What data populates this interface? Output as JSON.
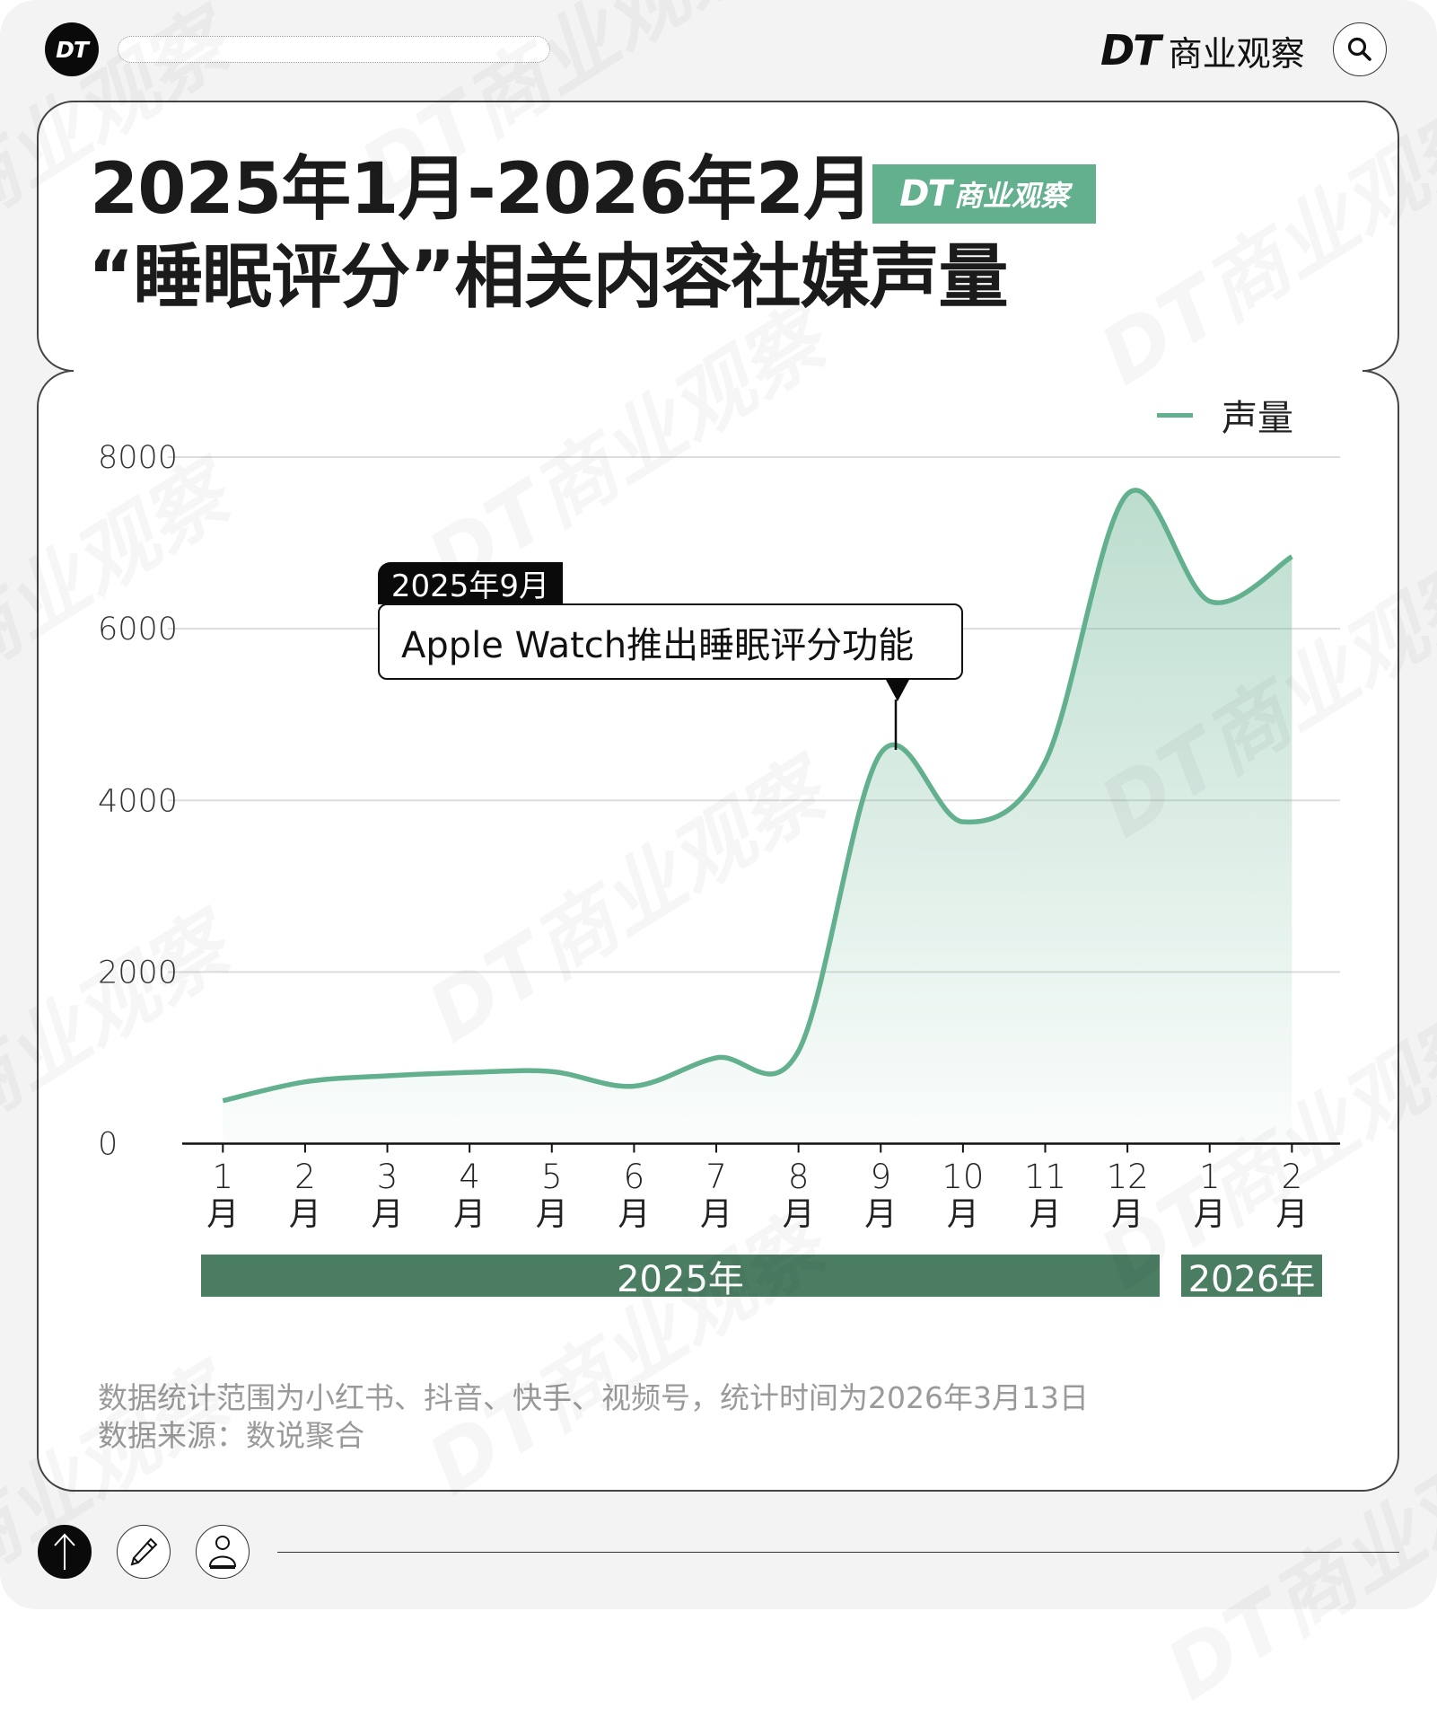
{
  "header": {
    "logo_text": "DT",
    "brand_dt": "DT",
    "brand_name": "商业观察",
    "search_icon": "search-icon"
  },
  "title": {
    "line1": "2025年1月-2026年2月",
    "line2": "“睡眠评分”相关内容社媒声量",
    "badge_dt": "DT",
    "badge_name": "商业观察"
  },
  "legend": {
    "label": "声量",
    "color": "#63b08e"
  },
  "annotation": {
    "tag": "2025年9月",
    "text": "Apple Watch推出睡眠评分功能"
  },
  "year_bars": [
    {
      "label": "2025年"
    },
    {
      "label": "2026年"
    }
  ],
  "footnote": {
    "line1": "数据统计范围为小红书、抖音、快手、视频号，统计时间为2026年3月13日",
    "line2": "数据来源：数说聚合"
  },
  "bottom_bar": {
    "buttons": [
      "arrow-up-icon",
      "pencil-icon",
      "person-icon"
    ]
  },
  "watermark": "DT商业观察",
  "colors": {
    "background": "#f3f3f3",
    "card": "#ffffff",
    "accent_green": "#63b08e",
    "year_bar_green": "#4b7d63",
    "text_dark": "#1b1b1b",
    "footnote_gray": "#9a9a9a"
  },
  "chart_data": {
    "type": "area",
    "title": "2025年1月-2026年2月“睡眠评分”相关内容社媒声量",
    "categories": [
      "1月",
      "2月",
      "3月",
      "4月",
      "5月",
      "6月",
      "7月",
      "8月",
      "9月",
      "10月",
      "11月",
      "12月",
      "1月",
      "2月"
    ],
    "x_tick_unit": "月",
    "category_groups": [
      {
        "label": "2025年",
        "from_index": 0,
        "to_index": 11
      },
      {
        "label": "2026年",
        "from_index": 12,
        "to_index": 13
      }
    ],
    "series": [
      {
        "name": "声量",
        "color": "#63b08e",
        "values": [
          500,
          720,
          790,
          830,
          840,
          670,
          1000,
          1080,
          4550,
          3750,
          4450,
          7570,
          6320,
          6840
        ]
      }
    ],
    "yticks": [
      0,
      2000,
      4000,
      6000,
      8000
    ],
    "ylim": [
      0,
      8000
    ],
    "xlabel": "",
    "ylabel": "",
    "grid": true,
    "smooth": true,
    "legend": {
      "position": "top-right",
      "entries": [
        "声量"
      ]
    },
    "annotations": [
      {
        "x_index": 8,
        "tag": "2025年9月",
        "text": "Apple Watch推出睡眠评分功能"
      }
    ],
    "notes": [
      "数据统计范围为小红书、抖音、快手、视频号，统计时间为2026年3月13日",
      "数据来源：数说聚合"
    ]
  }
}
